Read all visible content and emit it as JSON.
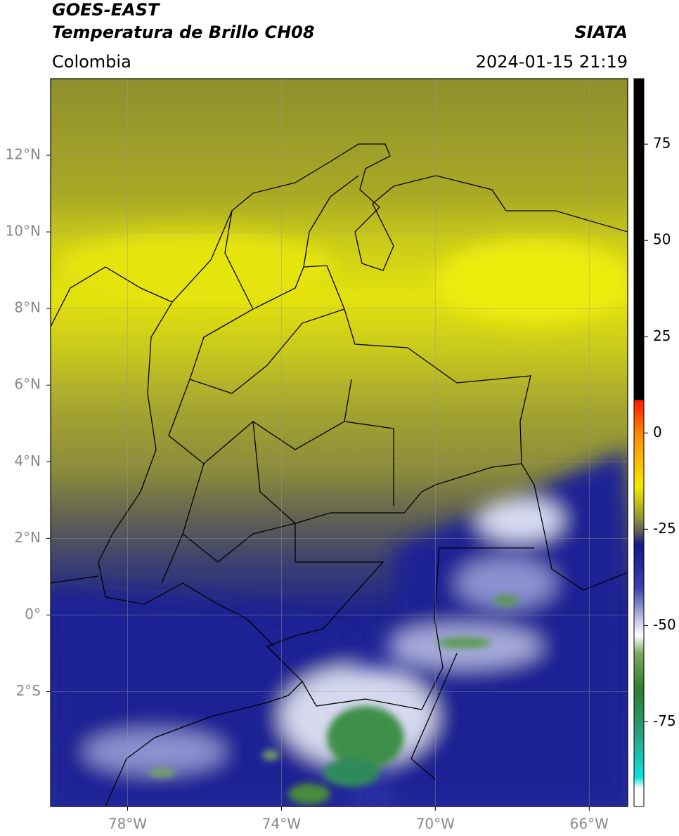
{
  "header": {
    "satellite": "GOES-EAST",
    "product": "Temperatura de Brillo CH08",
    "region": "Colombia",
    "source": "SIATA",
    "datetime": "2024-01-15 21:19"
  },
  "map": {
    "lon_range": [
      -80,
      -65
    ],
    "lat_range": [
      -5,
      14
    ],
    "lat_ticks": [
      {
        "value": 12,
        "label": "12°N"
      },
      {
        "value": 10,
        "label": "10°N"
      },
      {
        "value": 8,
        "label": "8°N"
      },
      {
        "value": 6,
        "label": "6°N"
      },
      {
        "value": 4,
        "label": "4°N"
      },
      {
        "value": 2,
        "label": "2°N"
      },
      {
        "value": 0,
        "label": "0°"
      },
      {
        "value": -2,
        "label": "2°S"
      }
    ],
    "lon_ticks": [
      {
        "value": -78,
        "label": "78°W"
      },
      {
        "value": -74,
        "label": "74°W"
      },
      {
        "value": -70,
        "label": "70°W"
      },
      {
        "value": -66,
        "label": "66°W"
      }
    ]
  },
  "colorbar": {
    "range": [
      -97,
      92
    ],
    "ticks": [
      75,
      50,
      25,
      0,
      -25,
      -50,
      -75
    ]
  }
}
